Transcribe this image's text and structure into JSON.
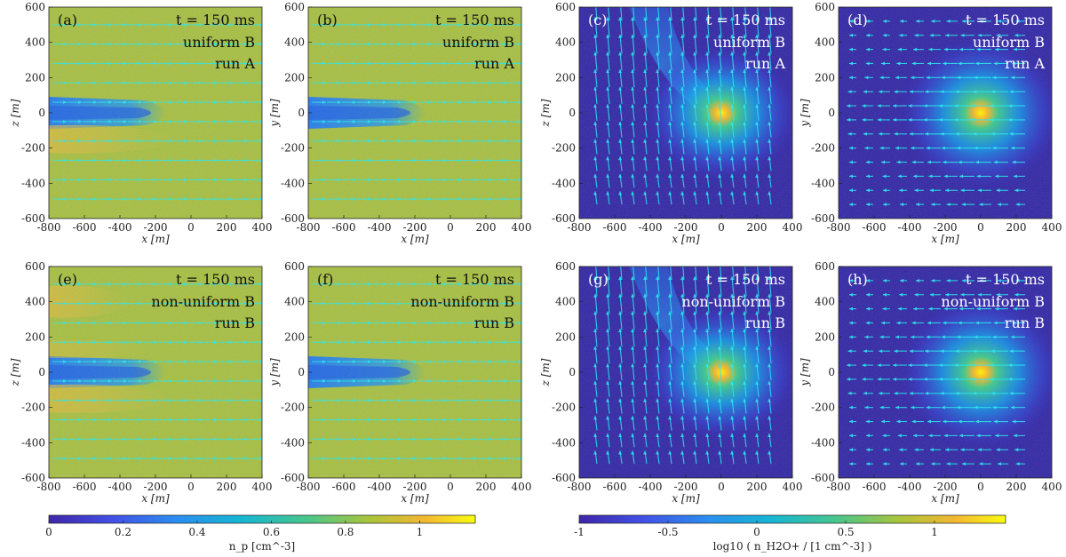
{
  "figure": {
    "panels": [
      {
        "id": "a",
        "label": "(a)",
        "time": "t = 150 ms",
        "field": "uniform B",
        "run": "run A",
        "type": "proton",
        "plane": "xz",
        "xlabel": "x [m]",
        "ylabel": "z [m]"
      },
      {
        "id": "b",
        "label": "(b)",
        "time": "t = 150 ms",
        "field": "uniform B",
        "run": "run A",
        "type": "proton",
        "plane": "xy",
        "xlabel": "x [m]",
        "ylabel": "y [m]"
      },
      {
        "id": "c",
        "label": "(c)",
        "time": "t = 150 ms",
        "field": "uniform B",
        "run": "run A",
        "type": "ion",
        "plane": "xz",
        "xlabel": "x [m]",
        "ylabel": "z [m]"
      },
      {
        "id": "d",
        "label": "(d)",
        "time": "t = 150 ms",
        "field": "uniform B",
        "run": "run A",
        "type": "ion",
        "plane": "xy",
        "xlabel": "x [m]",
        "ylabel": "y [m]"
      },
      {
        "id": "e",
        "label": "(e)",
        "time": "t = 150 ms",
        "field": "non-uniform B",
        "run": "run B",
        "type": "proton",
        "plane": "xz",
        "xlabel": "x [m]",
        "ylabel": "z [m]"
      },
      {
        "id": "f",
        "label": "(f)",
        "time": "t = 150 ms",
        "field": "non-uniform B",
        "run": "run B",
        "type": "proton",
        "plane": "xy",
        "xlabel": "x [m]",
        "ylabel": "y [m]"
      },
      {
        "id": "g",
        "label": "(g)",
        "time": "t = 150 ms",
        "field": "non-uniform B",
        "run": "run B",
        "type": "ion",
        "plane": "xz",
        "xlabel": "x [m]",
        "ylabel": "z [m]"
      },
      {
        "id": "h",
        "label": "(h)",
        "time": "t = 150 ms",
        "field": "non-uniform B",
        "run": "run B",
        "type": "ion",
        "plane": "xy",
        "xlabel": "x [m]",
        "ylabel": "y [m]"
      }
    ]
  },
  "chart_data": {
    "type": "heatmap",
    "xlim": [
      -800,
      400
    ],
    "ylim": [
      -600,
      600
    ],
    "xticks": [
      "-800",
      "-600",
      "-400",
      "-200",
      "0",
      "200",
      "400"
    ],
    "yticks": [
      "600",
      "400",
      "200",
      "0",
      "-200",
      "-400",
      "-600"
    ],
    "colorbars": [
      {
        "id": "np",
        "label": "n_p  [cm^-3]",
        "range": [
          0,
          1.15
        ],
        "ticks": [
          "0",
          "0.2",
          "0.4",
          "0.6",
          "0.8",
          "1"
        ]
      },
      {
        "id": "nh2o",
        "label": "log10 ( n_H2O+ / [1 cm^-3] )",
        "range": [
          -1,
          1.4
        ],
        "ticks": [
          "-1",
          "-0.5",
          "0",
          "0.5",
          "1"
        ]
      }
    ]
  },
  "colors": {
    "low": "#3a30a8",
    "mid": "#36b8a8",
    "high": "#f4d93a",
    "arrow": "#2ee6ee"
  }
}
